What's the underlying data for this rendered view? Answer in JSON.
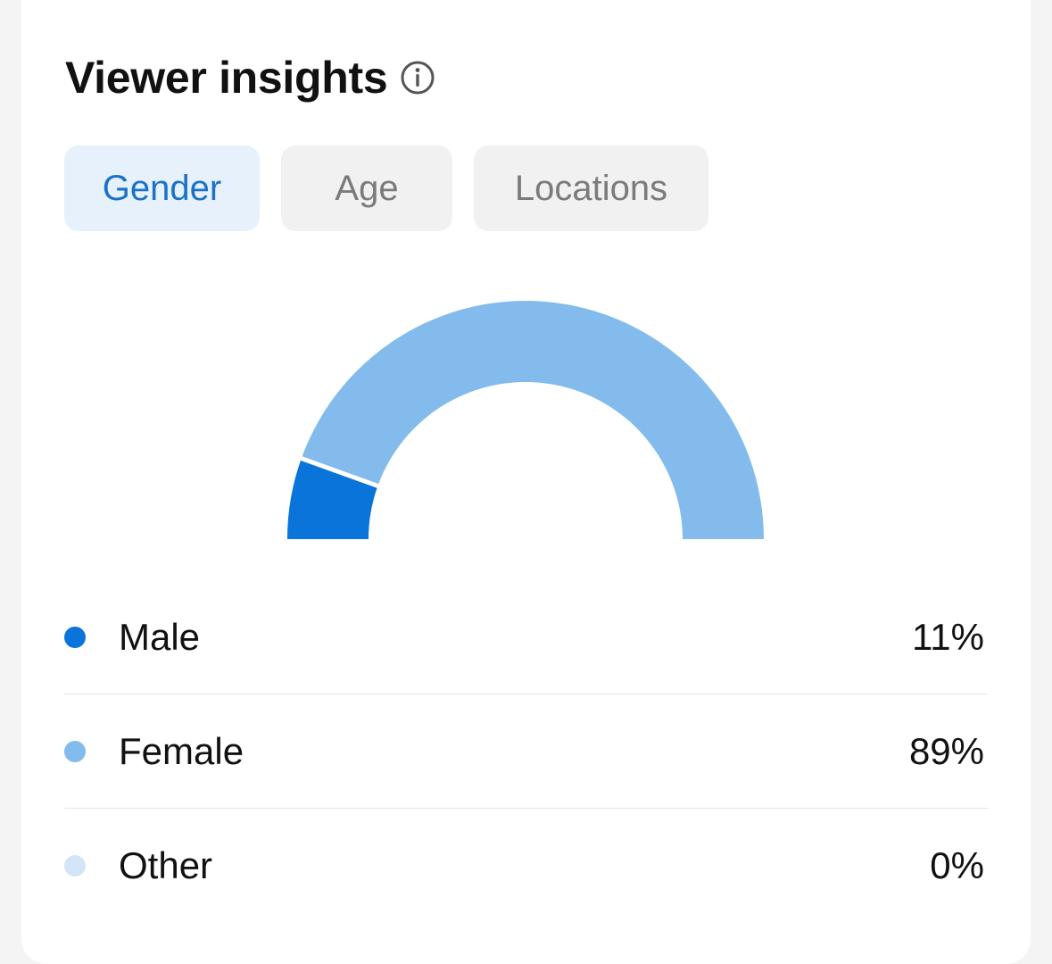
{
  "header": {
    "title": "Viewer insights",
    "info_icon": "info-icon"
  },
  "tabs": [
    {
      "label": "Gender",
      "active": true
    },
    {
      "label": "Age",
      "active": false
    },
    {
      "label": "Locations",
      "active": false
    }
  ],
  "colors": {
    "male": "#0a74da",
    "female": "#82bbec",
    "other": "#d3e6f8",
    "active_tab_bg": "#e6f1fb",
    "active_tab_text": "#1a73c8"
  },
  "chart_data": {
    "type": "pie",
    "shape": "half-donut",
    "categories": [
      "Male",
      "Female",
      "Other"
    ],
    "values": [
      11,
      89,
      0
    ],
    "unit": "%"
  },
  "legend": [
    {
      "label": "Male",
      "value": "11%"
    },
    {
      "label": "Female",
      "value": "89%"
    },
    {
      "label": "Other",
      "value": "0%"
    }
  ]
}
